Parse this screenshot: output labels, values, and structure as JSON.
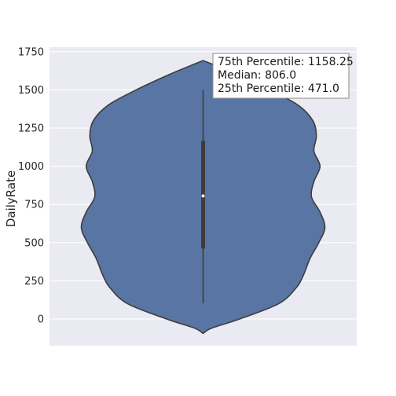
{
  "chart_data": {
    "type": "violin",
    "title": "",
    "xlabel": "",
    "ylabel": "DailyRate",
    "ylim": [
      -175,
      1780
    ],
    "yticks": [
      0,
      250,
      500,
      750,
      1000,
      1250,
      1500,
      1750
    ],
    "grid": true,
    "legend": "none",
    "colors": {
      "background": "#EAEAF2",
      "violin_fill": "#5875A4",
      "violin_edge": "#3D3D3D",
      "grid": "#FFFFFF"
    },
    "stats": {
      "min": 102,
      "q1": 471.0,
      "median": 806.0,
      "q3": 1158.25,
      "max": 1499
    },
    "density_profile": [
      {
        "y": -95,
        "w": 0.0
      },
      {
        "y": -60,
        "w": 0.07
      },
      {
        "y": 0,
        "w": 0.3
      },
      {
        "y": 100,
        "w": 0.62
      },
      {
        "y": 200,
        "w": 0.76
      },
      {
        "y": 280,
        "w": 0.82
      },
      {
        "y": 400,
        "w": 0.88
      },
      {
        "y": 500,
        "w": 0.95
      },
      {
        "y": 600,
        "w": 1.0
      },
      {
        "y": 700,
        "w": 0.96
      },
      {
        "y": 800,
        "w": 0.89
      },
      {
        "y": 900,
        "w": 0.91
      },
      {
        "y": 1000,
        "w": 0.96
      },
      {
        "y": 1100,
        "w": 0.91
      },
      {
        "y": 1200,
        "w": 0.93
      },
      {
        "y": 1300,
        "w": 0.9
      },
      {
        "y": 1400,
        "w": 0.78
      },
      {
        "y": 1500,
        "w": 0.55
      },
      {
        "y": 1600,
        "w": 0.28
      },
      {
        "y": 1660,
        "w": 0.1
      },
      {
        "y": 1692,
        "w": 0.0
      }
    ],
    "annotation": {
      "lines": [
        "75th Percentile: 1158.25",
        "Median: 806.0",
        "25th Percentile: 471.0"
      ]
    }
  }
}
